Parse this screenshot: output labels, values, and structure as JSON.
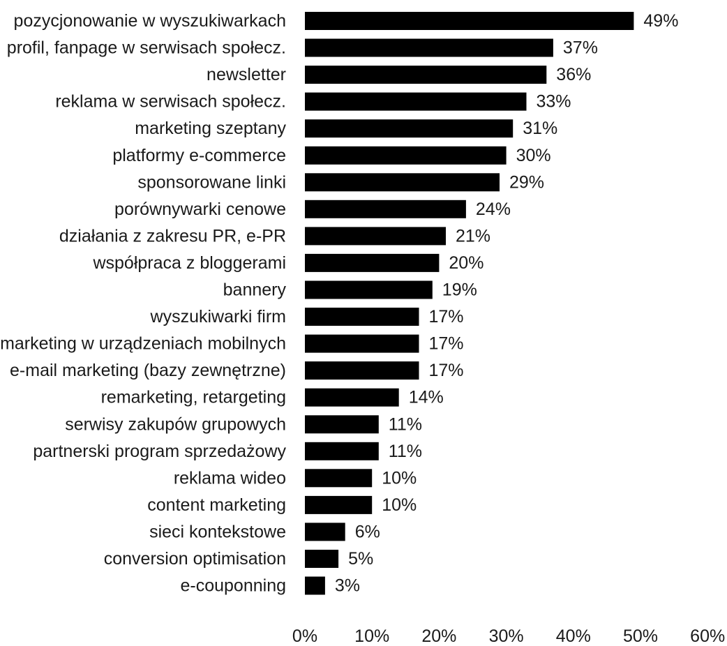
{
  "chart_data": {
    "type": "bar",
    "orientation": "horizontal",
    "title": "",
    "xlabel": "",
    "ylabel": "",
    "categories": [
      "pozycjonowanie w wyszukiwarkach",
      "profil, fanpage w serwisach społecz.",
      "newsletter",
      "reklama w serwisach społecz.",
      "marketing szeptany",
      "platformy e-commerce",
      "sponsorowane linki",
      "porównywarki cenowe",
      "działania z zakresu PR, e-PR",
      "współpraca z bloggerami",
      "bannery",
      "wyszukiwarki firm",
      "marketing w urządzeniach mobilnych",
      "e-mail marketing (bazy zewnętrzne)",
      "remarketing, retargeting",
      "serwisy zakupów grupowych",
      "partnerski program sprzedażowy",
      "reklama wideo",
      "content marketing",
      "sieci kontekstowe",
      "conversion optimisation",
      "e-couponning"
    ],
    "values": [
      49,
      37,
      36,
      33,
      31,
      30,
      29,
      24,
      21,
      20,
      19,
      17,
      17,
      17,
      14,
      11,
      11,
      10,
      10,
      6,
      5,
      3
    ],
    "value_labels": [
      "49%",
      "37%",
      "36%",
      "33%",
      "31%",
      "30%",
      "29%",
      "24%",
      "21%",
      "20%",
      "19%",
      "17%",
      "17%",
      "17%",
      "14%",
      "11%",
      "11%",
      "10%",
      "10%",
      "6%",
      "5%",
      "3%"
    ],
    "xlim": [
      0,
      60
    ],
    "x_ticks": [
      0,
      10,
      20,
      30,
      40,
      50,
      60
    ],
    "x_tick_labels": [
      "0%",
      "10%",
      "20%",
      "30%",
      "40%",
      "50%",
      "60%"
    ],
    "bar_color": "#000000",
    "grid": false,
    "legend": "none"
  }
}
